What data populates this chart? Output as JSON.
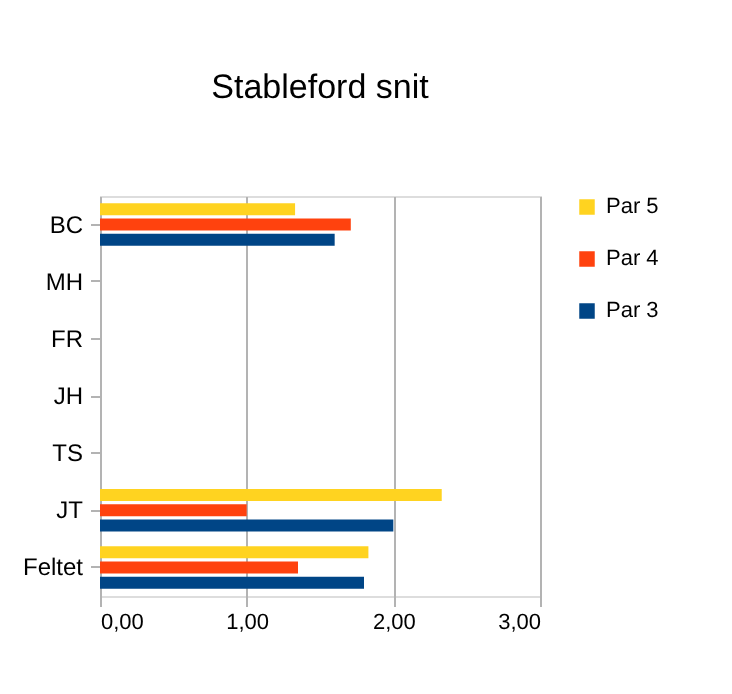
{
  "chart_data": {
    "type": "bar",
    "orientation": "horizontal",
    "title": "Stableford snit",
    "categories": [
      "BC",
      "MH",
      "FR",
      "JH",
      "TS",
      "JT",
      "Feltet"
    ],
    "series": [
      {
        "name": "Par 5",
        "color": "#ffd320",
        "values": [
          1.33,
          null,
          null,
          null,
          null,
          2.33,
          1.83
        ]
      },
      {
        "name": "Par 4",
        "color": "#ff420e",
        "values": [
          1.71,
          null,
          null,
          null,
          null,
          1.0,
          1.35
        ]
      },
      {
        "name": "Par 3",
        "color": "#004586",
        "values": [
          1.6,
          null,
          null,
          null,
          null,
          2.0,
          1.8
        ]
      }
    ],
    "xlim": [
      0,
      3
    ],
    "xticks": [
      {
        "value": 0,
        "label": "0,00"
      },
      {
        "value": 1,
        "label": "1,00"
      },
      {
        "value": 2,
        "label": "2,00"
      },
      {
        "value": 3,
        "label": "3,00"
      }
    ],
    "grid": "x",
    "legend": "right"
  }
}
